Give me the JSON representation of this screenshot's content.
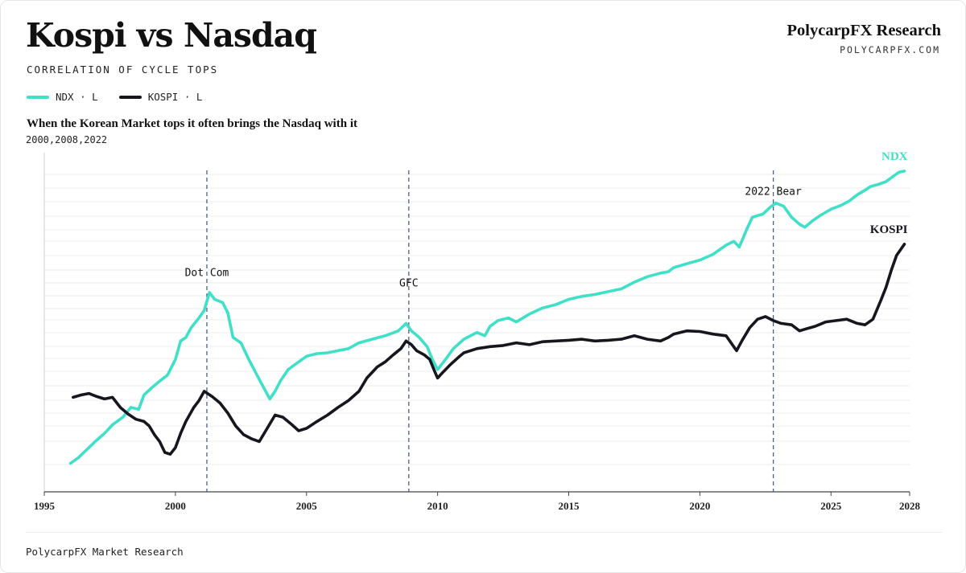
{
  "header": {
    "title": "Kospi vs Nasdaq",
    "subtitle": "CORRELATION OF CYCLE TOPS",
    "brand": "PolycarpFX Research",
    "brand_url": "POLYCARPFX.COM"
  },
  "legend": [
    {
      "label": "NDX · L",
      "color": "#40e0c8"
    },
    {
      "label": "KOSPI · L",
      "color": "#16161e"
    }
  ],
  "headline": "When the Korean Market tops it often brings the Nasdaq with it",
  "years_note": "2000,2008,2022",
  "footer": "PolycarpFX Market Research",
  "chart_data": {
    "type": "line",
    "xlim": [
      1995,
      2028
    ],
    "x_ticks": [
      "1995",
      "2000",
      "2005",
      "2010",
      "2015",
      "2020",
      "2025",
      "2028"
    ],
    "y_scale": "log",
    "y_tick_labels": "none",
    "grid": "horizontal",
    "series": [
      {
        "name": "NDX",
        "color": "#40e0c8",
        "end_label": "NDX",
        "points": [
          [
            1996.0,
            0.37
          ],
          [
            1996.3,
            0.4
          ],
          [
            1996.7,
            0.46
          ],
          [
            1997.0,
            0.51
          ],
          [
            1997.3,
            0.56
          ],
          [
            1997.6,
            0.63
          ],
          [
            1998.0,
            0.7
          ],
          [
            1998.3,
            0.8
          ],
          [
            1998.6,
            0.78
          ],
          [
            1998.8,
            0.95
          ],
          [
            1999.1,
            1.05
          ],
          [
            1999.4,
            1.15
          ],
          [
            1999.7,
            1.25
          ],
          [
            2000.0,
            1.55
          ],
          [
            2000.2,
            2.0
          ],
          [
            2000.4,
            2.1
          ],
          [
            2000.6,
            2.4
          ],
          [
            2000.9,
            2.75
          ],
          [
            2001.1,
            3.05
          ],
          [
            2001.3,
            3.9
          ],
          [
            2001.5,
            3.55
          ],
          [
            2001.8,
            3.4
          ],
          [
            2002.0,
            2.95
          ],
          [
            2002.2,
            2.1
          ],
          [
            2002.5,
            1.95
          ],
          [
            2002.8,
            1.55
          ],
          [
            2003.0,
            1.35
          ],
          [
            2003.3,
            1.1
          ],
          [
            2003.6,
            0.9
          ],
          [
            2003.8,
            1.0
          ],
          [
            2004.0,
            1.15
          ],
          [
            2004.3,
            1.35
          ],
          [
            2004.7,
            1.5
          ],
          [
            2005.0,
            1.62
          ],
          [
            2005.4,
            1.68
          ],
          [
            2005.8,
            1.7
          ],
          [
            2006.2,
            1.75
          ],
          [
            2006.6,
            1.8
          ],
          [
            2007.0,
            1.95
          ],
          [
            2007.5,
            2.05
          ],
          [
            2008.0,
            2.15
          ],
          [
            2008.5,
            2.3
          ],
          [
            2008.8,
            2.55
          ],
          [
            2009.0,
            2.3
          ],
          [
            2009.3,
            2.1
          ],
          [
            2009.6,
            1.85
          ],
          [
            2009.8,
            1.55
          ],
          [
            2010.0,
            1.35
          ],
          [
            2010.3,
            1.55
          ],
          [
            2010.6,
            1.8
          ],
          [
            2011.0,
            2.05
          ],
          [
            2011.5,
            2.25
          ],
          [
            2011.8,
            2.15
          ],
          [
            2012.0,
            2.45
          ],
          [
            2012.3,
            2.65
          ],
          [
            2012.7,
            2.75
          ],
          [
            2013.0,
            2.6
          ],
          [
            2013.5,
            2.9
          ],
          [
            2014.0,
            3.15
          ],
          [
            2014.5,
            3.3
          ],
          [
            2015.0,
            3.55
          ],
          [
            2015.5,
            3.7
          ],
          [
            2016.0,
            3.8
          ],
          [
            2016.5,
            3.95
          ],
          [
            2017.0,
            4.1
          ],
          [
            2017.5,
            4.5
          ],
          [
            2018.0,
            4.85
          ],
          [
            2018.5,
            5.1
          ],
          [
            2018.8,
            5.2
          ],
          [
            2019.0,
            5.5
          ],
          [
            2019.5,
            5.8
          ],
          [
            2020.0,
            6.1
          ],
          [
            2020.5,
            6.6
          ],
          [
            2021.0,
            7.5
          ],
          [
            2021.3,
            7.9
          ],
          [
            2021.5,
            7.3
          ],
          [
            2021.8,
            9.4
          ],
          [
            2022.0,
            11.0
          ],
          [
            2022.4,
            11.5
          ],
          [
            2022.7,
            12.7
          ],
          [
            2022.9,
            13.4
          ],
          [
            2023.2,
            12.8
          ],
          [
            2023.5,
            11.0
          ],
          [
            2023.8,
            10.0
          ],
          [
            2024.0,
            9.6
          ],
          [
            2024.3,
            10.5
          ],
          [
            2024.6,
            11.3
          ],
          [
            2025.0,
            12.3
          ],
          [
            2025.4,
            13.0
          ],
          [
            2025.7,
            13.8
          ],
          [
            2026.0,
            15.0
          ],
          [
            2026.3,
            16.0
          ],
          [
            2026.5,
            16.8
          ],
          [
            2026.8,
            17.3
          ],
          [
            2027.1,
            18.0
          ],
          [
            2027.4,
            19.5
          ],
          [
            2027.6,
            20.5
          ],
          [
            2027.8,
            20.8
          ]
        ]
      },
      {
        "name": "KOSPI",
        "color": "#16161e",
        "end_label": "KOSPI",
        "points": [
          [
            1996.1,
            0.92
          ],
          [
            1996.4,
            0.95
          ],
          [
            1996.7,
            0.97
          ],
          [
            1997.0,
            0.93
          ],
          [
            1997.3,
            0.9
          ],
          [
            1997.6,
            0.92
          ],
          [
            1997.9,
            0.8
          ],
          [
            1998.2,
            0.73
          ],
          [
            1998.5,
            0.68
          ],
          [
            1998.8,
            0.66
          ],
          [
            1999.0,
            0.62
          ],
          [
            1999.2,
            0.55
          ],
          [
            1999.4,
            0.5
          ],
          [
            1999.6,
            0.43
          ],
          [
            1999.8,
            0.42
          ],
          [
            2000.0,
            0.46
          ],
          [
            2000.2,
            0.56
          ],
          [
            2000.4,
            0.66
          ],
          [
            2000.7,
            0.8
          ],
          [
            2000.9,
            0.88
          ],
          [
            2001.1,
            1.0
          ],
          [
            2001.4,
            0.93
          ],
          [
            2001.7,
            0.85
          ],
          [
            2002.0,
            0.74
          ],
          [
            2002.3,
            0.62
          ],
          [
            2002.6,
            0.55
          ],
          [
            2002.9,
            0.52
          ],
          [
            2003.2,
            0.5
          ],
          [
            2003.5,
            0.6
          ],
          [
            2003.8,
            0.72
          ],
          [
            2004.1,
            0.7
          ],
          [
            2004.4,
            0.64
          ],
          [
            2004.7,
            0.58
          ],
          [
            2005.0,
            0.6
          ],
          [
            2005.4,
            0.66
          ],
          [
            2005.8,
            0.72
          ],
          [
            2006.2,
            0.8
          ],
          [
            2006.6,
            0.88
          ],
          [
            2007.0,
            1.0
          ],
          [
            2007.3,
            1.2
          ],
          [
            2007.7,
            1.4
          ],
          [
            2008.0,
            1.5
          ],
          [
            2008.3,
            1.65
          ],
          [
            2008.6,
            1.8
          ],
          [
            2008.8,
            2.0
          ],
          [
            2009.0,
            1.9
          ],
          [
            2009.2,
            1.75
          ],
          [
            2009.5,
            1.65
          ],
          [
            2009.7,
            1.55
          ],
          [
            2009.9,
            1.3
          ],
          [
            2010.0,
            1.2
          ],
          [
            2010.2,
            1.3
          ],
          [
            2010.5,
            1.45
          ],
          [
            2010.8,
            1.6
          ],
          [
            2011.0,
            1.7
          ],
          [
            2011.5,
            1.8
          ],
          [
            2012.0,
            1.85
          ],
          [
            2012.5,
            1.88
          ],
          [
            2013.0,
            1.95
          ],
          [
            2013.5,
            1.9
          ],
          [
            2014.0,
            1.98
          ],
          [
            2014.5,
            2.0
          ],
          [
            2015.0,
            2.02
          ],
          [
            2015.5,
            2.05
          ],
          [
            2016.0,
            2.0
          ],
          [
            2016.5,
            2.02
          ],
          [
            2017.0,
            2.05
          ],
          [
            2017.5,
            2.15
          ],
          [
            2018.0,
            2.05
          ],
          [
            2018.5,
            2.0
          ],
          [
            2018.8,
            2.1
          ],
          [
            2019.0,
            2.2
          ],
          [
            2019.5,
            2.3
          ],
          [
            2020.0,
            2.28
          ],
          [
            2020.5,
            2.2
          ],
          [
            2021.0,
            2.15
          ],
          [
            2021.4,
            1.75
          ],
          [
            2021.6,
            2.0
          ],
          [
            2021.9,
            2.4
          ],
          [
            2022.2,
            2.7
          ],
          [
            2022.5,
            2.8
          ],
          [
            2022.8,
            2.65
          ],
          [
            2023.1,
            2.55
          ],
          [
            2023.5,
            2.5
          ],
          [
            2023.8,
            2.3
          ],
          [
            2024.0,
            2.35
          ],
          [
            2024.4,
            2.45
          ],
          [
            2024.8,
            2.6
          ],
          [
            2025.2,
            2.65
          ],
          [
            2025.6,
            2.7
          ],
          [
            2026.0,
            2.55
          ],
          [
            2026.3,
            2.5
          ],
          [
            2026.6,
            2.7
          ],
          [
            2026.9,
            3.5
          ],
          [
            2027.1,
            4.2
          ],
          [
            2027.3,
            5.3
          ],
          [
            2027.5,
            6.5
          ],
          [
            2027.8,
            7.6
          ]
        ]
      }
    ],
    "annotations": [
      {
        "label": "Dot Com",
        "x": 2001.2,
        "label_y": 4.9
      },
      {
        "label": "GFC",
        "x": 2008.9,
        "label_y": 4.25
      },
      {
        "label": "2022 Bear",
        "x": 2022.8,
        "label_y": 15.0
      }
    ]
  }
}
